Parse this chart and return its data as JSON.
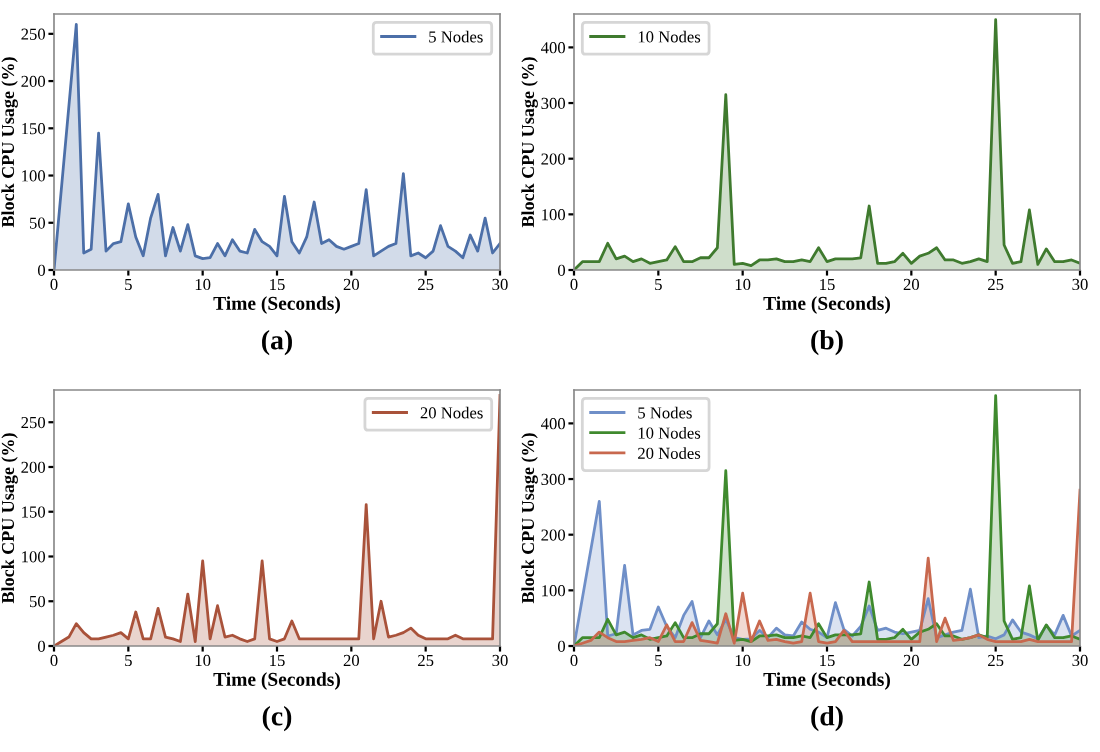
{
  "chart_data": [
    {
      "type": "area",
      "xlabel": "Time (Seconds)",
      "ylabel": "Block CPU Usage (%)",
      "xlim": [
        0,
        30
      ],
      "xticks": [
        0,
        5,
        10,
        15,
        20,
        25,
        30
      ],
      "ylim": [
        0,
        271
      ],
      "yticks": [
        0,
        50,
        100,
        150,
        200,
        250
      ],
      "legend": "top right",
      "annotations": [
        "(a)"
      ],
      "series": [
        {
          "name": "5 Nodes",
          "color": "#4c6fa8",
          "x": [
            0,
            1.5,
            2,
            2.5,
            3,
            3.5,
            4,
            4.5,
            5,
            5.5,
            6,
            6.5,
            7,
            7.5,
            8,
            8.5,
            9,
            9.5,
            10,
            10.5,
            11,
            11.5,
            12,
            12.5,
            13,
            13.5,
            14,
            14.5,
            15,
            15.5,
            16,
            16.5,
            17,
            17.5,
            18,
            18.5,
            19,
            19.5,
            20,
            20.5,
            21,
            21.5,
            22,
            22.5,
            23,
            23.5,
            24,
            24.5,
            25,
            25.5,
            26,
            26.5,
            27,
            27.5,
            28,
            28.5,
            29,
            29.5,
            30
          ],
          "values": [
            0,
            260,
            18,
            22,
            145,
            20,
            28,
            30,
            70,
            35,
            15,
            55,
            80,
            15,
            45,
            20,
            48,
            15,
            12,
            13,
            28,
            15,
            32,
            20,
            18,
            43,
            30,
            25,
            15,
            78,
            30,
            18,
            35,
            72,
            28,
            32,
            25,
            22,
            25,
            28,
            85,
            15,
            20,
            25,
            28,
            102,
            15,
            18,
            13,
            20,
            47,
            25,
            20,
            13,
            37,
            20,
            55,
            18,
            28
          ]
        }
      ]
    },
    {
      "type": "area",
      "xlabel": "Time (Seconds)",
      "ylabel": "Block CPU Usage (%)",
      "xlim": [
        0,
        30
      ],
      "xticks": [
        0,
        5,
        10,
        15,
        20,
        25,
        30
      ],
      "ylim": [
        0,
        460
      ],
      "yticks": [
        0,
        100,
        200,
        300,
        400
      ],
      "legend": "top left",
      "annotations": [
        "(b)"
      ],
      "series": [
        {
          "name": "10 Nodes",
          "color": "#3f7a2e",
          "x": [
            0,
            0.5,
            1,
            1.5,
            2,
            2.5,
            3,
            3.5,
            4,
            4.5,
            5,
            5.5,
            6,
            6.5,
            7,
            7.5,
            8,
            8.5,
            9,
            9.5,
            10,
            10.5,
            11,
            11.5,
            12,
            12.5,
            13,
            13.5,
            14,
            14.5,
            15,
            15.5,
            16,
            16.5,
            17,
            17.5,
            18,
            18.5,
            19,
            19.5,
            20,
            20.5,
            21,
            21.5,
            22,
            22.5,
            23,
            23.5,
            24,
            24.5,
            25,
            25.5,
            26,
            26.5,
            27,
            27.5,
            28,
            28.5,
            29,
            29.5,
            30
          ],
          "values": [
            0,
            15,
            15,
            15,
            48,
            20,
            25,
            15,
            20,
            12,
            15,
            18,
            42,
            15,
            15,
            22,
            22,
            40,
            315,
            10,
            12,
            8,
            18,
            18,
            20,
            15,
            15,
            18,
            15,
            40,
            15,
            20,
            20,
            20,
            22,
            115,
            12,
            12,
            15,
            30,
            12,
            25,
            30,
            40,
            18,
            18,
            12,
            15,
            20,
            15,
            450,
            45,
            12,
            15,
            108,
            10,
            38,
            15,
            15,
            18,
            12
          ]
        }
      ]
    },
    {
      "type": "area",
      "xlabel": "Time (Seconds)",
      "ylabel": "Block CPU Usage (%)",
      "xlim": [
        0,
        30
      ],
      "xticks": [
        0,
        5,
        10,
        15,
        20,
        25,
        30
      ],
      "ylim": [
        0,
        286
      ],
      "yticks": [
        0,
        50,
        100,
        150,
        200,
        250
      ],
      "legend": "top right",
      "annotations": [
        "(c)"
      ],
      "series": [
        {
          "name": "20 Nodes",
          "color": "#a9523a",
          "x": [
            0,
            0.5,
            1,
            1.5,
            2,
            2.5,
            3,
            3.5,
            4,
            4.5,
            5,
            5.5,
            6,
            6.5,
            7,
            7.5,
            8,
            8.5,
            9,
            9.5,
            10,
            10.5,
            11,
            11.5,
            12,
            12.5,
            13,
            13.5,
            14,
            14.5,
            15,
            15.5,
            16,
            16.5,
            17,
            17.5,
            18,
            18.5,
            19,
            19.5,
            20,
            20.5,
            21,
            21.5,
            22,
            22.5,
            23,
            23.5,
            24,
            24.5,
            25,
            25.5,
            26,
            26.5,
            27,
            27.5,
            28,
            28.5,
            29,
            29.5,
            30
          ],
          "values": [
            0,
            5,
            10,
            25,
            15,
            8,
            8,
            10,
            12,
            15,
            8,
            38,
            8,
            8,
            42,
            10,
            8,
            5,
            58,
            5,
            95,
            8,
            45,
            10,
            12,
            8,
            5,
            8,
            95,
            8,
            5,
            8,
            28,
            8,
            8,
            8,
            8,
            8,
            8,
            8,
            8,
            8,
            158,
            8,
            50,
            10,
            12,
            15,
            20,
            12,
            8,
            8,
            8,
            8,
            12,
            8,
            8,
            8,
            8,
            8,
            280
          ]
        }
      ]
    },
    {
      "type": "area",
      "xlabel": "Time (Seconds)",
      "ylabel": "Block CPU Usage (%)",
      "xlim": [
        0,
        30
      ],
      "xticks": [
        0,
        5,
        10,
        15,
        20,
        25,
        30
      ],
      "ylim": [
        0,
        460
      ],
      "yticks": [
        0,
        100,
        200,
        300,
        400
      ],
      "legend": "top left",
      "annotations": [
        "(d)"
      ],
      "series": [
        {
          "name": "5 Nodes",
          "color": "#6f8fc8",
          "x": [
            0,
            1.5,
            2,
            2.5,
            3,
            3.5,
            4,
            4.5,
            5,
            5.5,
            6,
            6.5,
            7,
            7.5,
            8,
            8.5,
            9,
            9.5,
            10,
            10.5,
            11,
            11.5,
            12,
            12.5,
            13,
            13.5,
            14,
            14.5,
            15,
            15.5,
            16,
            16.5,
            17,
            17.5,
            18,
            18.5,
            19,
            19.5,
            20,
            20.5,
            21,
            21.5,
            22,
            22.5,
            23,
            23.5,
            24,
            24.5,
            25,
            25.5,
            26,
            26.5,
            27,
            27.5,
            28,
            28.5,
            29,
            29.5,
            30
          ],
          "values": [
            0,
            260,
            18,
            22,
            145,
            20,
            28,
            30,
            70,
            35,
            15,
            55,
            80,
            15,
            45,
            20,
            48,
            15,
            12,
            13,
            28,
            15,
            32,
            20,
            18,
            43,
            30,
            25,
            15,
            78,
            30,
            18,
            35,
            72,
            28,
            32,
            25,
            22,
            25,
            28,
            85,
            15,
            20,
            25,
            28,
            102,
            15,
            18,
            13,
            20,
            47,
            25,
            20,
            13,
            37,
            20,
            55,
            18,
            28
          ]
        },
        {
          "name": "10 Nodes",
          "color": "#3f8a2e",
          "x": [
            0,
            0.5,
            1,
            1.5,
            2,
            2.5,
            3,
            3.5,
            4,
            4.5,
            5,
            5.5,
            6,
            6.5,
            7,
            7.5,
            8,
            8.5,
            9,
            9.5,
            10,
            10.5,
            11,
            11.5,
            12,
            12.5,
            13,
            13.5,
            14,
            14.5,
            15,
            15.5,
            16,
            16.5,
            17,
            17.5,
            18,
            18.5,
            19,
            19.5,
            20,
            20.5,
            21,
            21.5,
            22,
            22.5,
            23,
            23.5,
            24,
            24.5,
            25,
            25.5,
            26,
            26.5,
            27,
            27.5,
            28,
            28.5,
            29,
            29.5,
            30
          ],
          "values": [
            0,
            15,
            15,
            15,
            48,
            20,
            25,
            15,
            20,
            12,
            15,
            18,
            42,
            15,
            15,
            22,
            22,
            40,
            315,
            10,
            12,
            8,
            18,
            18,
            20,
            15,
            15,
            18,
            15,
            40,
            15,
            20,
            20,
            20,
            22,
            115,
            12,
            12,
            15,
            30,
            12,
            25,
            30,
            40,
            18,
            18,
            12,
            15,
            20,
            15,
            450,
            45,
            12,
            15,
            108,
            10,
            38,
            15,
            15,
            18,
            12
          ]
        },
        {
          "name": "20 Nodes",
          "color": "#c8684e",
          "x": [
            0,
            0.5,
            1,
            1.5,
            2,
            2.5,
            3,
            3.5,
            4,
            4.5,
            5,
            5.5,
            6,
            6.5,
            7,
            7.5,
            8,
            8.5,
            9,
            9.5,
            10,
            10.5,
            11,
            11.5,
            12,
            12.5,
            13,
            13.5,
            14,
            14.5,
            15,
            15.5,
            16,
            16.5,
            17,
            17.5,
            18,
            18.5,
            19,
            19.5,
            20,
            20.5,
            21,
            21.5,
            22,
            22.5,
            23,
            23.5,
            24,
            24.5,
            25,
            25.5,
            26,
            26.5,
            27,
            27.5,
            28,
            28.5,
            29,
            29.5,
            30
          ],
          "values": [
            0,
            5,
            10,
            25,
            15,
            8,
            8,
            10,
            12,
            15,
            8,
            38,
            8,
            8,
            42,
            10,
            8,
            5,
            58,
            5,
            95,
            8,
            45,
            10,
            12,
            8,
            5,
            8,
            95,
            8,
            5,
            8,
            28,
            8,
            8,
            8,
            8,
            8,
            8,
            8,
            8,
            8,
            158,
            8,
            50,
            10,
            12,
            15,
            20,
            12,
            8,
            8,
            8,
            8,
            12,
            8,
            8,
            8,
            8,
            8,
            280
          ]
        }
      ]
    }
  ]
}
